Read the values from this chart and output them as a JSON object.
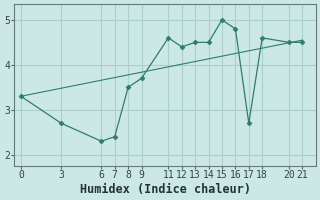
{
  "xlabel": "Humidex (Indice chaleur)",
  "background_color": "#cce8e5",
  "grid_color": "#aacfcc",
  "line_color": "#2e7d6e",
  "data_x": [
    0,
    3,
    6,
    7,
    8,
    9,
    11,
    12,
    13,
    14,
    15,
    16,
    17,
    18,
    20,
    21
  ],
  "data_y": [
    3.3,
    2.7,
    2.3,
    2.4,
    3.5,
    3.7,
    4.6,
    4.4,
    4.5,
    4.5,
    5.0,
    4.8,
    2.7,
    4.6,
    4.5,
    4.5
  ],
  "trend_x": [
    0,
    21
  ],
  "trend_y": [
    3.3,
    4.55
  ],
  "xlim": [
    -0.5,
    22
  ],
  "ylim": [
    1.75,
    5.35
  ],
  "xticks": [
    0,
    3,
    6,
    7,
    8,
    9,
    11,
    12,
    13,
    14,
    15,
    16,
    17,
    18,
    20,
    21
  ],
  "yticks": [
    2,
    3,
    4,
    5
  ],
  "tick_fontsize": 7,
  "xlabel_fontsize": 8.5
}
